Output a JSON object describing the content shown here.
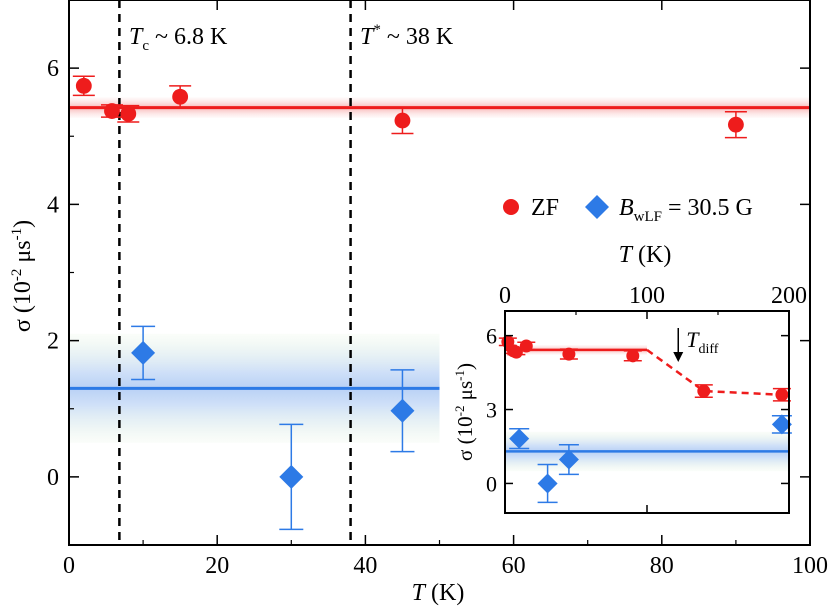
{
  "chart_data": [
    {
      "id": "main",
      "type": "scatter",
      "xlabel": {
        "symbol": "T",
        "unit": " (K)"
      },
      "ylabel": {
        "symbol": "σ",
        "unit_pre": " (10",
        "unit_exp1": "-2",
        "unit_mid": " μs",
        "unit_exp2": "-1",
        "unit_post": ")"
      },
      "xlim": [
        0,
        100
      ],
      "ylim": [
        -1,
        7
      ],
      "xticks": [
        0,
        20,
        40,
        60,
        80,
        100
      ],
      "yticks": [
        0,
        2,
        4,
        6
      ],
      "series": [
        {
          "name": "ZF",
          "marker": "circle",
          "color": "#ee1c1c",
          "points": [
            {
              "x": 2,
              "y": 5.74,
              "err": 0.14
            },
            {
              "x": 5.8,
              "y": 5.37,
              "err": 0.09
            },
            {
              "x": 8,
              "y": 5.33,
              "err": 0.12
            },
            {
              "x": 15,
              "y": 5.58,
              "err": 0.16
            },
            {
              "x": 45,
              "y": 5.23,
              "err": 0.19
            },
            {
              "x": 90,
              "y": 5.17,
              "err": 0.19
            }
          ],
          "fit": {
            "y": 5.42,
            "x0": 0,
            "x1": 100,
            "band": 0.15
          }
        },
        {
          "name": "B_wLF = 30.5 G",
          "marker": "diamond",
          "color": "#2d7ae6",
          "points": [
            {
              "x": 10,
              "y": 1.82,
              "err": 0.39
            },
            {
              "x": 30,
              "y": 0.0,
              "err": 0.77
            },
            {
              "x": 45,
              "y": 0.97,
              "err": 0.6
            }
          ],
          "fit": {
            "y": 1.3,
            "x0": 0,
            "x1": 50,
            "band": 0.8
          }
        }
      ],
      "vlines": [
        {
          "x": 6.8,
          "label_sym": "T",
          "label_sub": "c",
          "label_text": " ~ 6.8 K"
        },
        {
          "x": 38,
          "label_sym": "T",
          "label_sup": "*",
          "label_text": " ~ 38 K"
        }
      ],
      "legend": {
        "position": "right-middle",
        "zf_label": "ZF",
        "lf_sym": "B",
        "lf_sub": "wLF",
        "lf_text": " = 30.5 G"
      }
    },
    {
      "id": "inset",
      "type": "scatter",
      "xlabel": {
        "symbol": "T",
        "unit": " (K)"
      },
      "ylabel": {
        "symbol": "σ",
        "unit_pre": " (10",
        "unit_exp1": "-2",
        "unit_mid": " μs",
        "unit_exp2": "-1",
        "unit_post": ")"
      },
      "xlim": [
        0,
        200
      ],
      "ylim": [
        -1.2,
        7
      ],
      "xticks": [
        0,
        100,
        200
      ],
      "yticks": [
        0,
        3,
        6
      ],
      "series": [
        {
          "name": "ZF",
          "marker": "circle",
          "color": "#ee1c1c",
          "points": [
            {
              "x": 2,
              "y": 5.75,
              "err": 0.15
            },
            {
              "x": 6,
              "y": 5.38,
              "err": 0.1
            },
            {
              "x": 8,
              "y": 5.33,
              "err": 0.1
            },
            {
              "x": 15,
              "y": 5.58,
              "err": 0.15
            },
            {
              "x": 45,
              "y": 5.25,
              "err": 0.2
            },
            {
              "x": 90,
              "y": 5.18,
              "err": 0.2
            },
            {
              "x": 140,
              "y": 3.75,
              "err": 0.25
            },
            {
              "x": 195,
              "y": 3.6,
              "err": 0.25
            }
          ],
          "fit": {
            "y": 5.42,
            "x0": 0,
            "x1": 100,
            "band": 0.2
          },
          "dashed_trend": [
            [
              100,
              5.42
            ],
            [
              140,
              3.75
            ],
            [
              195,
              3.6
            ]
          ]
        },
        {
          "name": "B_wLF = 30.5 G",
          "marker": "diamond",
          "color": "#2d7ae6",
          "points": [
            {
              "x": 10,
              "y": 1.82,
              "err": 0.4
            },
            {
              "x": 30,
              "y": 0.0,
              "err": 0.77
            },
            {
              "x": 45,
              "y": 0.97,
              "err": 0.6
            },
            {
              "x": 195,
              "y": 2.4,
              "err": 0.35
            }
          ],
          "fit": {
            "y": 1.3,
            "x0": 0,
            "x1": 200,
            "band": 0.8
          }
        }
      ],
      "annotation": {
        "x": 122,
        "sym": "T",
        "sub": "diff"
      }
    }
  ]
}
